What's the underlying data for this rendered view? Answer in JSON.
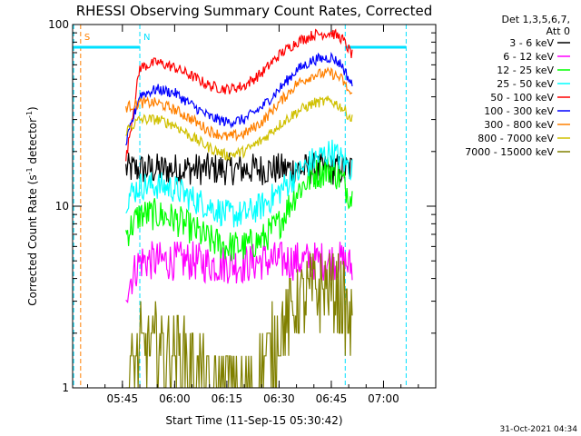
{
  "chart_data": {
    "type": "line",
    "title": "RHESSI Observing Summary Count Rates, Corrected",
    "xlabel": "Start Time (11-Sep-15 05:30:42)",
    "ylabel": "Corrected Count Rate (s⁻¹ detector⁻¹)",
    "y_scale": "log",
    "ylim": [
      1,
      100
    ],
    "xlim": [
      "05:30:42",
      "07:15:00"
    ],
    "x_ticks": [
      "05:45",
      "06:00",
      "06:15",
      "06:30",
      "06:45",
      "07:00"
    ],
    "y_ticks": [
      "1",
      "10",
      "100"
    ],
    "legend_header": [
      "Det 1,3,5,6,7,",
      "Att 0"
    ],
    "legend_position": "right",
    "annotations": [
      {
        "label": "S",
        "time": "05:33:00",
        "color": "#ff8000"
      },
      {
        "label": "N",
        "time": "05:50:00",
        "color": "#00e0ff"
      }
    ],
    "vertical_markers": [
      {
        "time": "05:31:00",
        "color": "#00e0ff"
      },
      {
        "time": "05:33:00",
        "color": "#ff8000"
      },
      {
        "time": "05:50:00",
        "color": "#00e0ff"
      },
      {
        "time": "06:49:00",
        "color": "#00e0ff"
      },
      {
        "time": "07:06:30",
        "color": "#00e0ff"
      }
    ],
    "attenuator_bars": [
      {
        "start": "05:30:42",
        "end": "05:50:00",
        "value": 75,
        "color": "#00e0ff"
      },
      {
        "start": "06:49:00",
        "end": "07:06:30",
        "value": 75,
        "color": "#00e0ff"
      }
    ],
    "x": [
      "05:46",
      "05:50",
      "05:55",
      "06:00",
      "06:05",
      "06:10",
      "06:15",
      "06:20",
      "06:25",
      "06:30",
      "06:35",
      "06:40",
      "06:45",
      "06:48",
      "06:51"
    ],
    "series": [
      {
        "name": "3 - 6 keV",
        "color": "#000000",
        "values": [
          16,
          16,
          16,
          16,
          16,
          16,
          16,
          16,
          16,
          16,
          16,
          16,
          16,
          16,
          16
        ]
      },
      {
        "name": "6 - 12 keV",
        "color": "#ff00ff",
        "values": [
          3.5,
          5,
          5,
          5,
          5,
          4.8,
          4.8,
          4.8,
          5,
          5,
          5,
          5,
          5,
          5,
          4.6
        ]
      },
      {
        "name": "12 - 25 keV",
        "color": "#00ff00",
        "values": [
          7,
          9,
          9,
          8.5,
          7.5,
          6.5,
          6,
          6,
          6.5,
          8,
          12,
          15,
          16,
          14,
          11
        ]
      },
      {
        "name": "25 - 50 keV",
        "color": "#00ffff",
        "values": [
          11,
          13,
          13,
          12.5,
          11,
          10,
          9,
          9,
          10,
          12,
          15,
          18,
          20,
          18,
          16
        ]
      },
      {
        "name": "50 - 100 keV",
        "color": "#ff0000",
        "values": [
          18,
          58,
          62,
          58,
          52,
          46,
          44,
          46,
          54,
          68,
          80,
          88,
          90,
          84,
          68
        ]
      },
      {
        "name": "100 - 300 keV",
        "color": "#0000ff",
        "values": [
          22,
          41,
          44,
          42,
          36,
          31,
          29,
          30,
          35,
          44,
          56,
          64,
          66,
          60,
          46
        ]
      },
      {
        "name": "300 - 800 keV",
        "color": "#ff8000",
        "values": [
          35,
          37,
          37,
          34,
          30,
          26,
          24,
          25,
          29,
          37,
          47,
          53,
          54,
          50,
          40
        ]
      },
      {
        "name": "800 - 7000 keV",
        "color": "#d0c000",
        "values": [
          26,
          30,
          30,
          28,
          24,
          21,
          19,
          20,
          23,
          28,
          33,
          37,
          38,
          35,
          30
        ]
      },
      {
        "name": "7000 - 15000 keV",
        "color": "#808000",
        "values": [
          1,
          1.7,
          1.7,
          1.6,
          1.4,
          1,
          1,
          1,
          1.3,
          2,
          2.8,
          3.5,
          3.5,
          3.2,
          2
        ]
      }
    ]
  },
  "footer": {
    "date": "31-Oct-2021 04:34"
  }
}
